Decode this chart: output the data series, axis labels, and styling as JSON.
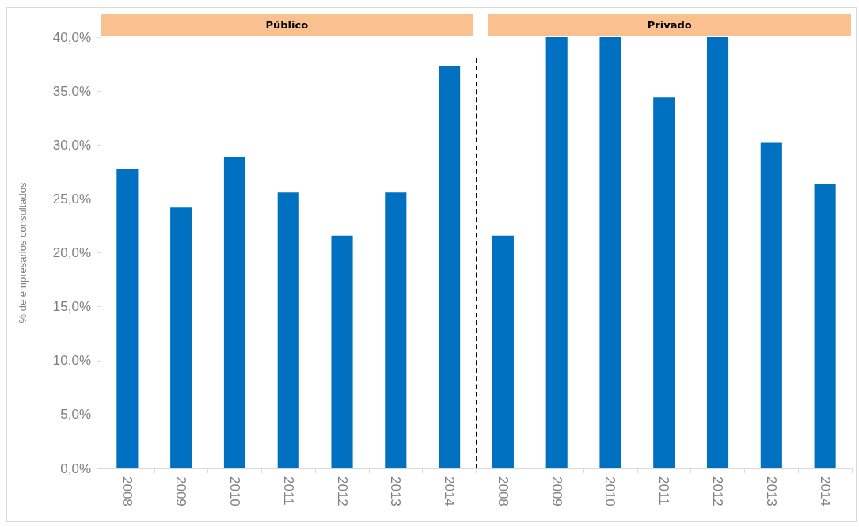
{
  "chart_data": {
    "type": "bar",
    "categories": [
      "2008",
      "2009",
      "2010",
      "2011",
      "2012",
      "2013",
      "2014",
      "2008",
      "2009",
      "2010",
      "2011",
      "2012",
      "2013",
      "2014"
    ],
    "values": [
      27.8,
      24.2,
      28.9,
      25.6,
      21.6,
      25.6,
      37.3,
      21.6,
      40,
      40,
      34.4,
      40,
      30.2,
      26.4
    ],
    "color": "#0070c0",
    "ylabel": "% de empresarios consultados",
    "ylim": [
      0,
      40
    ],
    "yticks": [
      {
        "value": 0,
        "label": "0,0%"
      },
      {
        "value": 5,
        "label": "5,0%"
      },
      {
        "value": 10,
        "label": "10,0%"
      },
      {
        "value": 15,
        "label": "15,0%"
      },
      {
        "value": 20,
        "label": "20,0%"
      },
      {
        "value": 25,
        "label": "25,0%"
      },
      {
        "value": 30,
        "label": "30,0%"
      },
      {
        "value": 35,
        "label": "35,0%"
      },
      {
        "value": 40,
        "label": "40,0%"
      }
    ],
    "grid": false,
    "annotations": [
      "Público",
      "Privado"
    ]
  }
}
